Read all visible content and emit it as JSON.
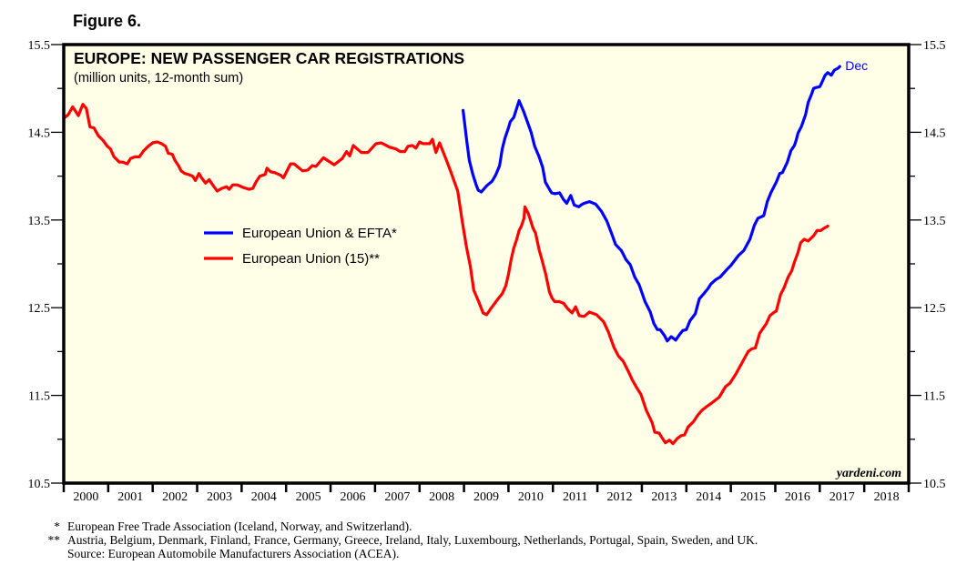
{
  "figure_label": "Figure 6.",
  "footnotes": [
    {
      "mark": "*",
      "text": "European Free Trade Association (Iceland, Norway, and Switzerland)."
    },
    {
      "mark": "**",
      "text": "Austria, Belgium, Denmark, Finland, France, Germany, Greece, Ireland, Italy, Luxembourg, Netherlands, Portugal, Spain, Sweden, and UK."
    },
    {
      "mark": "",
      "text": "Source: European Automobile Manufacturers Association (ACEA)."
    }
  ],
  "chart_data": {
    "type": "line",
    "title": "EUROPE: NEW PASSENGER CAR REGISTRATIONS",
    "subtitle": "(million units, 12-month sum)",
    "watermark": "yardeni.com",
    "xlabel": "",
    "ylabel": "",
    "xlim": [
      2000,
      2019
    ],
    "ylim": [
      10.5,
      15.5
    ],
    "y_ticks": [
      10.5,
      11.5,
      12.5,
      13.5,
      14.5,
      15.5
    ],
    "y_tick_labels": [
      "10.5",
      "11.5",
      "12.5",
      "13.5",
      "14.5",
      "15.5"
    ],
    "y_minor_ticks": [
      11.0,
      12.0,
      13.0,
      14.0,
      15.0
    ],
    "x_tick_labels": [
      "2000",
      "2001",
      "2002",
      "2003",
      "2004",
      "2005",
      "2006",
      "2007",
      "2008",
      "2009",
      "2010",
      "2011",
      "2012",
      "2013",
      "2014",
      "2015",
      "2016",
      "2017",
      "2018"
    ],
    "grid": false,
    "legend_position": "center-left",
    "end_annotation": {
      "series": 0,
      "text": "Dec"
    },
    "colors": {
      "background": "#ffffe8",
      "frame": "#000000"
    },
    "series": [
      {
        "name": "European Union & EFTA*",
        "color": "#0000ff",
        "points": [
          [
            2008.98,
            14.75
          ],
          [
            2009.06,
            14.41
          ],
          [
            2009.12,
            14.18
          ],
          [
            2009.2,
            14.02
          ],
          [
            2009.28,
            13.89
          ],
          [
            2009.32,
            13.84
          ],
          [
            2009.39,
            13.82
          ],
          [
            2009.51,
            13.89
          ],
          [
            2009.63,
            13.94
          ],
          [
            2009.71,
            14.01
          ],
          [
            2009.8,
            14.12
          ],
          [
            2009.86,
            14.31
          ],
          [
            2009.92,
            14.43
          ],
          [
            2010.0,
            14.55
          ],
          [
            2010.04,
            14.62
          ],
          [
            2010.12,
            14.67
          ],
          [
            2010.24,
            14.86
          ],
          [
            2010.34,
            14.74
          ],
          [
            2010.44,
            14.6
          ],
          [
            2010.51,
            14.5
          ],
          [
            2010.59,
            14.34
          ],
          [
            2010.69,
            14.22
          ],
          [
            2010.77,
            14.1
          ],
          [
            2010.83,
            13.93
          ],
          [
            2010.91,
            13.86
          ],
          [
            2010.97,
            13.81
          ],
          [
            2011.05,
            13.8
          ],
          [
            2011.15,
            13.81
          ],
          [
            2011.23,
            13.74
          ],
          [
            2011.31,
            13.69
          ],
          [
            2011.4,
            13.78
          ],
          [
            2011.48,
            13.67
          ],
          [
            2011.58,
            13.65
          ],
          [
            2011.66,
            13.68
          ],
          [
            2011.7,
            13.69
          ],
          [
            2011.82,
            13.71
          ],
          [
            2011.96,
            13.68
          ],
          [
            2012.09,
            13.6
          ],
          [
            2012.21,
            13.49
          ],
          [
            2012.31,
            13.36
          ],
          [
            2012.41,
            13.22
          ],
          [
            2012.54,
            13.15
          ],
          [
            2012.64,
            13.05
          ],
          [
            2012.74,
            12.99
          ],
          [
            2012.84,
            12.85
          ],
          [
            2012.94,
            12.76
          ],
          [
            2013.07,
            12.57
          ],
          [
            2013.19,
            12.45
          ],
          [
            2013.27,
            12.32
          ],
          [
            2013.35,
            12.25
          ],
          [
            2013.41,
            12.25
          ],
          [
            2013.51,
            12.18
          ],
          [
            2013.57,
            12.12
          ],
          [
            2013.66,
            12.17
          ],
          [
            2013.76,
            12.13
          ],
          [
            2013.84,
            12.19
          ],
          [
            2013.92,
            12.24
          ],
          [
            2014.0,
            12.25
          ],
          [
            2014.08,
            12.35
          ],
          [
            2014.2,
            12.43
          ],
          [
            2014.29,
            12.6
          ],
          [
            2014.41,
            12.67
          ],
          [
            2014.49,
            12.72
          ],
          [
            2014.55,
            12.77
          ],
          [
            2014.66,
            12.82
          ],
          [
            2014.76,
            12.85
          ],
          [
            2014.92,
            12.94
          ],
          [
            2015.0,
            12.98
          ],
          [
            2015.18,
            13.1
          ],
          [
            2015.29,
            13.15
          ],
          [
            2015.43,
            13.28
          ],
          [
            2015.53,
            13.44
          ],
          [
            2015.61,
            13.52
          ],
          [
            2015.74,
            13.55
          ],
          [
            2015.82,
            13.71
          ],
          [
            2015.9,
            13.81
          ],
          [
            2016.02,
            13.93
          ],
          [
            2016.1,
            14.03
          ],
          [
            2016.16,
            14.04
          ],
          [
            2016.27,
            14.16
          ],
          [
            2016.35,
            14.29
          ],
          [
            2016.43,
            14.35
          ],
          [
            2016.47,
            14.41
          ],
          [
            2016.51,
            14.49
          ],
          [
            2016.59,
            14.57
          ],
          [
            2016.68,
            14.7
          ],
          [
            2016.74,
            14.84
          ],
          [
            2016.82,
            14.94
          ],
          [
            2016.86,
            15.0
          ],
          [
            2016.92,
            15.01
          ],
          [
            2017.0,
            15.02
          ],
          [
            2017.04,
            15.06
          ],
          [
            2017.12,
            15.15
          ],
          [
            2017.18,
            15.18
          ],
          [
            2017.26,
            15.15
          ],
          [
            2017.33,
            15.21
          ],
          [
            2017.41,
            15.23
          ],
          [
            2017.45,
            15.25
          ]
        ]
      },
      {
        "name": "European Union (15)**",
        "color": "#ff0000",
        "points": [
          [
            2000.0,
            14.66
          ],
          [
            2000.1,
            14.7
          ],
          [
            2000.2,
            14.79
          ],
          [
            2000.33,
            14.69
          ],
          [
            2000.43,
            14.82
          ],
          [
            2000.51,
            14.77
          ],
          [
            2000.59,
            14.56
          ],
          [
            2000.68,
            14.55
          ],
          [
            2000.78,
            14.46
          ],
          [
            2000.88,
            14.41
          ],
          [
            2000.98,
            14.34
          ],
          [
            2001.05,
            14.31
          ],
          [
            2001.13,
            14.22
          ],
          [
            2001.25,
            14.16
          ],
          [
            2001.33,
            14.16
          ],
          [
            2001.43,
            14.14
          ],
          [
            2001.5,
            14.2
          ],
          [
            2001.6,
            14.22
          ],
          [
            2001.7,
            14.22
          ],
          [
            2001.8,
            14.29
          ],
          [
            2001.9,
            14.34
          ],
          [
            2002.0,
            14.38
          ],
          [
            2002.1,
            14.39
          ],
          [
            2002.2,
            14.37
          ],
          [
            2002.29,
            14.34
          ],
          [
            2002.35,
            14.26
          ],
          [
            2002.44,
            14.25
          ],
          [
            2002.5,
            14.18
          ],
          [
            2002.58,
            14.12
          ],
          [
            2002.64,
            14.06
          ],
          [
            2002.72,
            14.03
          ],
          [
            2002.8,
            14.02
          ],
          [
            2002.9,
            14.0
          ],
          [
            2002.96,
            13.95
          ],
          [
            2003.04,
            14.03
          ],
          [
            2003.1,
            13.98
          ],
          [
            2003.19,
            13.92
          ],
          [
            2003.27,
            13.96
          ],
          [
            2003.35,
            13.9
          ],
          [
            2003.45,
            13.83
          ],
          [
            2003.55,
            13.86
          ],
          [
            2003.66,
            13.88
          ],
          [
            2003.72,
            13.85
          ],
          [
            2003.8,
            13.9
          ],
          [
            2003.9,
            13.9
          ],
          [
            2004.04,
            13.87
          ],
          [
            2004.17,
            13.85
          ],
          [
            2004.25,
            13.86
          ],
          [
            2004.33,
            13.94
          ],
          [
            2004.41,
            14.0
          ],
          [
            2004.53,
            14.02
          ],
          [
            2004.57,
            14.09
          ],
          [
            2004.65,
            14.05
          ],
          [
            2004.74,
            14.04
          ],
          [
            2004.88,
            14.01
          ],
          [
            2004.94,
            13.98
          ],
          [
            2005.1,
            14.14
          ],
          [
            2005.18,
            14.14
          ],
          [
            2005.37,
            14.06
          ],
          [
            2005.49,
            14.07
          ],
          [
            2005.59,
            14.12
          ],
          [
            2005.67,
            14.11
          ],
          [
            2005.84,
            14.21
          ],
          [
            2006.08,
            14.13
          ],
          [
            2006.26,
            14.2
          ],
          [
            2006.36,
            14.28
          ],
          [
            2006.43,
            14.23
          ],
          [
            2006.51,
            14.35
          ],
          [
            2006.69,
            14.27
          ],
          [
            2006.84,
            14.27
          ],
          [
            2007.02,
            14.37
          ],
          [
            2007.14,
            14.38
          ],
          [
            2007.33,
            14.33
          ],
          [
            2007.47,
            14.31
          ],
          [
            2007.57,
            14.28
          ],
          [
            2007.67,
            14.28
          ],
          [
            2007.74,
            14.34
          ],
          [
            2007.84,
            14.35
          ],
          [
            2007.92,
            14.32
          ],
          [
            2008.0,
            14.39
          ],
          [
            2008.08,
            14.37
          ],
          [
            2008.23,
            14.37
          ],
          [
            2008.29,
            14.42
          ],
          [
            2008.37,
            14.27
          ],
          [
            2008.45,
            14.38
          ],
          [
            2008.59,
            14.2
          ],
          [
            2008.69,
            14.07
          ],
          [
            2008.86,
            13.83
          ],
          [
            2008.96,
            13.49
          ],
          [
            2009.06,
            13.18
          ],
          [
            2009.14,
            12.98
          ],
          [
            2009.22,
            12.7
          ],
          [
            2009.33,
            12.57
          ],
          [
            2009.43,
            12.44
          ],
          [
            2009.51,
            12.42
          ],
          [
            2009.59,
            12.48
          ],
          [
            2009.69,
            12.55
          ],
          [
            2009.78,
            12.61
          ],
          [
            2009.86,
            12.66
          ],
          [
            2009.94,
            12.75
          ],
          [
            2010.0,
            12.88
          ],
          [
            2010.06,
            13.05
          ],
          [
            2010.12,
            13.18
          ],
          [
            2010.18,
            13.27
          ],
          [
            2010.24,
            13.38
          ],
          [
            2010.29,
            13.43
          ],
          [
            2010.35,
            13.52
          ],
          [
            2010.37,
            13.65
          ],
          [
            2010.45,
            13.57
          ],
          [
            2010.55,
            13.41
          ],
          [
            2010.61,
            13.35
          ],
          [
            2010.69,
            13.16
          ],
          [
            2010.75,
            13.05
          ],
          [
            2010.84,
            12.88
          ],
          [
            2010.92,
            12.68
          ],
          [
            2010.98,
            12.61
          ],
          [
            2011.04,
            12.57
          ],
          [
            2011.14,
            12.57
          ],
          [
            2011.24,
            12.55
          ],
          [
            2011.33,
            12.49
          ],
          [
            2011.43,
            12.44
          ],
          [
            2011.51,
            12.51
          ],
          [
            2011.59,
            12.41
          ],
          [
            2011.7,
            12.4
          ],
          [
            2011.82,
            12.45
          ],
          [
            2011.98,
            12.42
          ],
          [
            2012.14,
            12.34
          ],
          [
            2012.25,
            12.22
          ],
          [
            2012.37,
            12.05
          ],
          [
            2012.47,
            11.95
          ],
          [
            2012.58,
            11.89
          ],
          [
            2012.7,
            11.77
          ],
          [
            2012.78,
            11.68
          ],
          [
            2012.88,
            11.59
          ],
          [
            2012.98,
            11.51
          ],
          [
            2013.1,
            11.33
          ],
          [
            2013.23,
            11.19
          ],
          [
            2013.29,
            11.08
          ],
          [
            2013.39,
            11.07
          ],
          [
            2013.45,
            11.02
          ],
          [
            2013.53,
            10.96
          ],
          [
            2013.62,
            10.99
          ],
          [
            2013.7,
            10.95
          ],
          [
            2013.8,
            11.01
          ],
          [
            2013.88,
            11.04
          ],
          [
            2013.96,
            11.05
          ],
          [
            2014.04,
            11.14
          ],
          [
            2014.16,
            11.2
          ],
          [
            2014.25,
            11.27
          ],
          [
            2014.35,
            11.33
          ],
          [
            2014.45,
            11.37
          ],
          [
            2014.59,
            11.42
          ],
          [
            2014.74,
            11.48
          ],
          [
            2014.88,
            11.6
          ],
          [
            2014.98,
            11.64
          ],
          [
            2015.12,
            11.75
          ],
          [
            2015.39,
            12.0
          ],
          [
            2015.47,
            12.03
          ],
          [
            2015.55,
            12.04
          ],
          [
            2015.65,
            12.21
          ],
          [
            2015.8,
            12.32
          ],
          [
            2015.88,
            12.41
          ],
          [
            2015.98,
            12.45
          ],
          [
            2016.02,
            12.46
          ],
          [
            2016.12,
            12.65
          ],
          [
            2016.2,
            12.73
          ],
          [
            2016.29,
            12.85
          ],
          [
            2016.37,
            12.92
          ],
          [
            2016.43,
            13.02
          ],
          [
            2016.51,
            13.13
          ],
          [
            2016.57,
            13.24
          ],
          [
            2016.65,
            13.28
          ],
          [
            2016.74,
            13.26
          ],
          [
            2016.86,
            13.32
          ],
          [
            2016.94,
            13.38
          ],
          [
            2017.02,
            13.38
          ],
          [
            2017.08,
            13.4
          ],
          [
            2017.18,
            13.43
          ]
        ]
      }
    ]
  }
}
